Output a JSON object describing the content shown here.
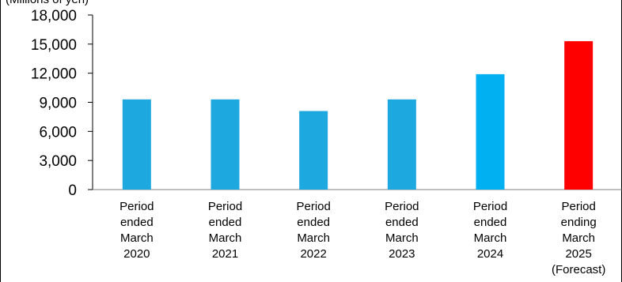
{
  "chart_data": {
    "type": "bar",
    "unit_label": "(Millions of yen)",
    "y_ticks": [
      "0",
      "3,000",
      "6,000",
      "9,000",
      "12,000",
      "15,000",
      "18,000"
    ],
    "ylim": [
      0,
      18000
    ],
    "categories": [
      [
        "Period",
        "ended",
        "March",
        "2020"
      ],
      [
        "Period",
        "ended",
        "March",
        "2021"
      ],
      [
        "Period",
        "ended",
        "March",
        "2022"
      ],
      [
        "Period",
        "ended",
        "March",
        "2023"
      ],
      [
        "Period",
        "ended",
        "March",
        "2024"
      ],
      [
        "Period",
        "ending",
        "March",
        "2025",
        "(Forecast)"
      ]
    ],
    "values": [
      9300,
      9300,
      8100,
      9300,
      11900,
      15300
    ],
    "bar_colors": [
      "#1EA8E0",
      "#1EA8E0",
      "#1EA8E0",
      "#1EA8E0",
      "#00B0F0",
      "#FF0000"
    ],
    "grid": false,
    "legend": "none"
  }
}
